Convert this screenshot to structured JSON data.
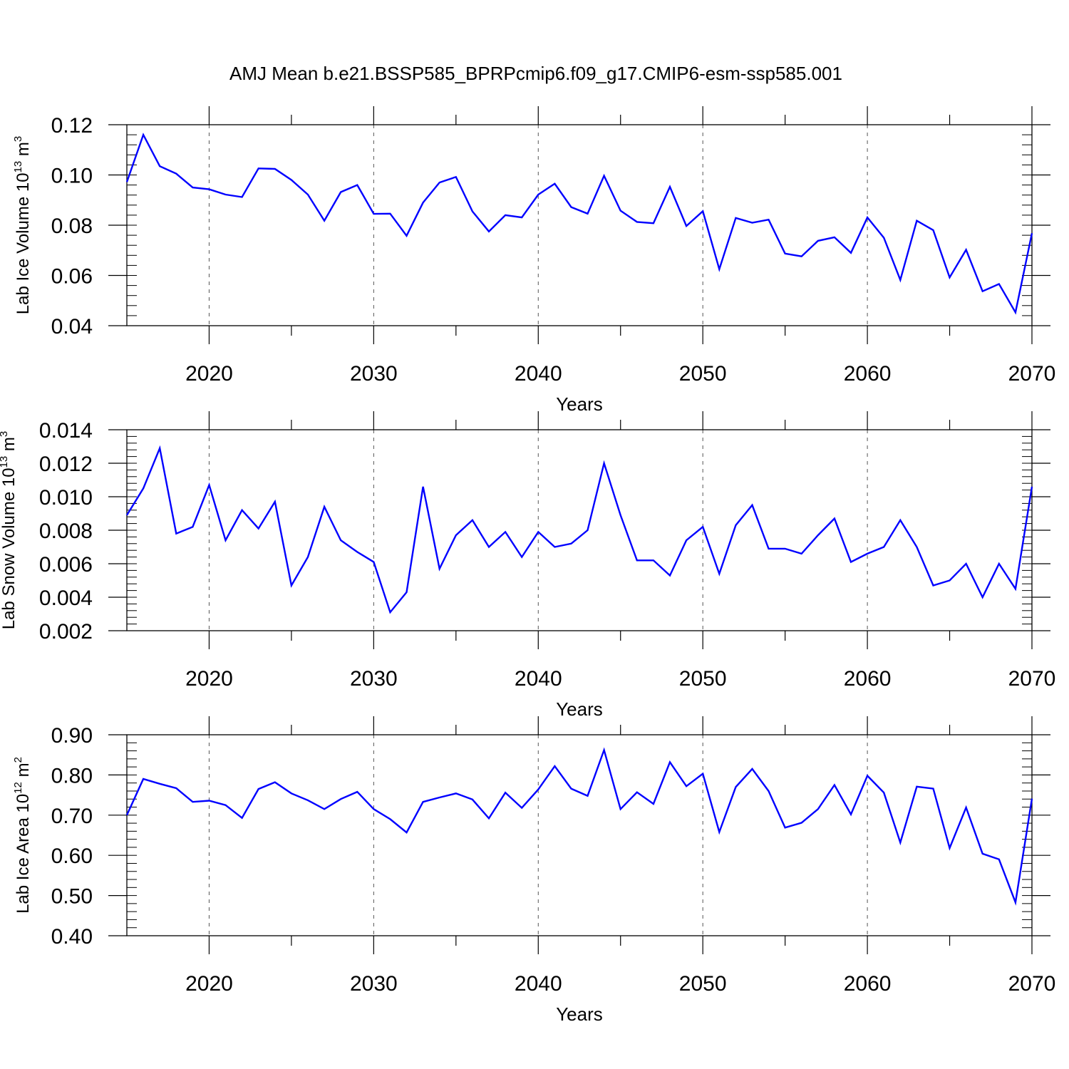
{
  "title": "AMJ Mean b.e21.BSSP585_BPRPcmip6.f09_g17.CMIP6-esm-ssp585.001",
  "chart_data": [
    {
      "type": "line",
      "title": "AMJ Mean b.e21.BSSP585_BPRPcmip6.f09_g17.CMIP6-esm-ssp585.001",
      "xlabel": "Years",
      "ylabel_text": "Lab Ice Volume 10",
      "ylabel_exp": "13",
      "ylabel_unit": " m",
      "ylabel_unit_exp": "3",
      "xlim": [
        2015,
        2070
      ],
      "ylim": [
        0.04,
        0.12
      ],
      "grid": "dashed vertical at major x ticks",
      "line_color": "#0000ff",
      "x_ticks": [
        "2020",
        "2030",
        "2040",
        "2050",
        "2060",
        "2070"
      ],
      "y_ticks": [
        "0.04",
        "0.06",
        "0.08",
        "0.10",
        "0.12"
      ],
      "x_start": 2015,
      "values": [
        0.0972,
        0.116,
        0.1035,
        0.1005,
        0.095,
        0.0943,
        0.0922,
        0.0912,
        0.1026,
        0.1024,
        0.098,
        0.0922,
        0.0818,
        0.0932,
        0.096,
        0.0845,
        0.0846,
        0.0758,
        0.089,
        0.097,
        0.0992,
        0.0855,
        0.0775,
        0.084,
        0.0831,
        0.0922,
        0.0965,
        0.0872,
        0.0846,
        0.0997,
        0.0858,
        0.0813,
        0.0808,
        0.0953,
        0.0797,
        0.0856,
        0.0625,
        0.0829,
        0.081,
        0.0822,
        0.0687,
        0.0676,
        0.0738,
        0.0752,
        0.069,
        0.0831,
        0.075,
        0.0582,
        0.0818,
        0.078,
        0.0592,
        0.0702,
        0.0537,
        0.0566,
        0.0453,
        0.0768
      ]
    },
    {
      "type": "line",
      "xlabel": "Years",
      "ylabel_text": "Lab Snow Volume 10",
      "ylabel_exp": "13",
      "ylabel_unit": " m",
      "ylabel_unit_exp": "3",
      "xlim": [
        2015,
        2070
      ],
      "ylim": [
        0.002,
        0.014
      ],
      "line_color": "#0000ff",
      "x_ticks": [
        "2020",
        "2030",
        "2040",
        "2050",
        "2060",
        "2070"
      ],
      "y_ticks": [
        "0.002",
        "0.004",
        "0.006",
        "0.008",
        "0.010",
        "0.012",
        "0.014"
      ],
      "x_start": 2015,
      "values": [
        0.0089,
        0.0105,
        0.0129,
        0.0078,
        0.0082,
        0.0107,
        0.0074,
        0.0092,
        0.0081,
        0.0097,
        0.0047,
        0.0064,
        0.0094,
        0.0074,
        0.0067,
        0.0061,
        0.0031,
        0.0043,
        0.0106,
        0.0057,
        0.0077,
        0.0086,
        0.007,
        0.0079,
        0.0064,
        0.0079,
        0.007,
        0.0072,
        0.008,
        0.012,
        0.0089,
        0.0062,
        0.0062,
        0.0053,
        0.0074,
        0.0082,
        0.0054,
        0.0083,
        0.0095,
        0.0069,
        0.0069,
        0.0066,
        0.0077,
        0.0087,
        0.0061,
        0.0066,
        0.007,
        0.0086,
        0.007,
        0.0047,
        0.005,
        0.006,
        0.004,
        0.006,
        0.0045,
        0.0106
      ]
    },
    {
      "type": "line",
      "xlabel": "Years",
      "ylabel_text": "Lab Ice Area 10",
      "ylabel_exp": "12",
      "ylabel_unit": " m",
      "ylabel_unit_exp": "2",
      "xlim": [
        2015,
        2070
      ],
      "ylim": [
        0.4,
        0.9
      ],
      "line_color": "#0000ff",
      "x_ticks": [
        "2020",
        "2030",
        "2040",
        "2050",
        "2060",
        "2070"
      ],
      "y_ticks": [
        "0.40",
        "0.50",
        "0.60",
        "0.70",
        "0.80",
        "0.90"
      ],
      "x_start": 2015,
      "values": [
        0.7,
        0.79,
        0.778,
        0.767,
        0.733,
        0.736,
        0.725,
        0.693,
        0.765,
        0.782,
        0.754,
        0.737,
        0.715,
        0.74,
        0.758,
        0.715,
        0.69,
        0.657,
        0.733,
        0.744,
        0.754,
        0.739,
        0.692,
        0.756,
        0.718,
        0.764,
        0.822,
        0.766,
        0.748,
        0.862,
        0.715,
        0.757,
        0.728,
        0.832,
        0.772,
        0.803,
        0.658,
        0.77,
        0.815,
        0.76,
        0.669,
        0.681,
        0.715,
        0.775,
        0.702,
        0.798,
        0.756,
        0.632,
        0.771,
        0.766,
        0.618,
        0.719,
        0.604,
        0.59,
        0.483,
        0.741
      ]
    }
  ]
}
